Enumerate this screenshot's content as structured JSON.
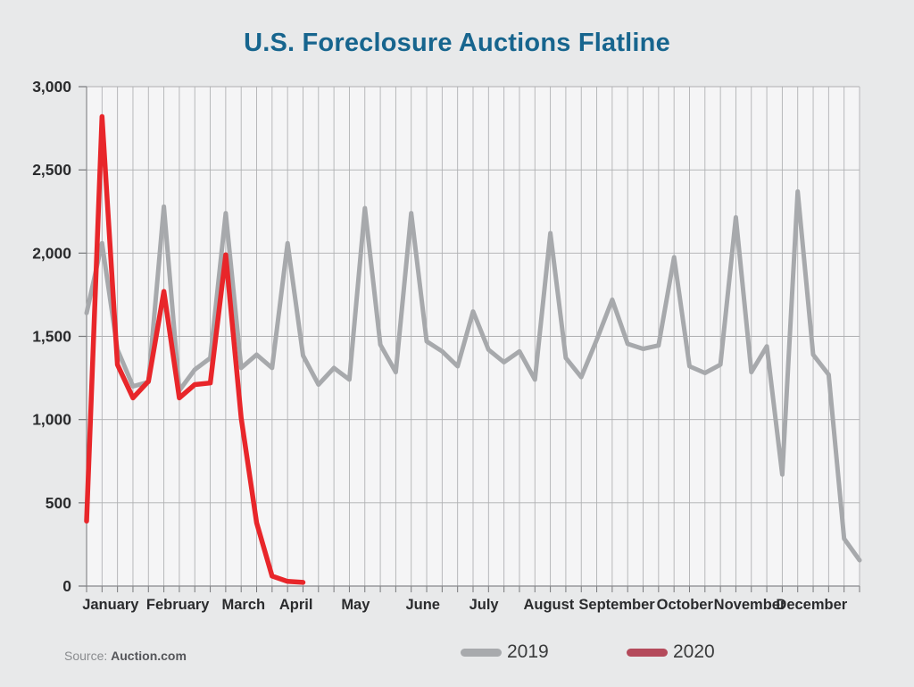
{
  "page": {
    "title": "U.S. Foreclosure Auctions Flatline"
  },
  "chart_data": {
    "type": "line",
    "title": "U.S. Foreclosure Auctions Flatline",
    "title_color": "#17658e",
    "xlabel": "",
    "ylabel": "",
    "ylim": [
      0,
      3000
    ],
    "y_tick_labels": [
      "3,000",
      "2,500",
      "2,000",
      "1,500",
      "1,000",
      "500",
      "0"
    ],
    "y_tick_values": [
      3000,
      2500,
      2000,
      1500,
      1000,
      500,
      0
    ],
    "x_unit": "week",
    "weeks": 51,
    "grid": {
      "vertical_lines": 51,
      "horizontal_step": 500,
      "grid_on": true
    },
    "months": [
      "January",
      "February",
      "March",
      "April",
      "May",
      "June",
      "July",
      "August",
      "September",
      "October",
      "November",
      "December"
    ],
    "month_center_fracs": [
      0.031,
      0.118,
      0.203,
      0.271,
      0.348,
      0.435,
      0.514,
      0.598,
      0.686,
      0.774,
      0.858,
      0.938
    ],
    "series": [
      {
        "name": "2019",
        "color": "#a7a9ac",
        "line_width": 5,
        "values": [
          1640,
          2060,
          1420,
          1200,
          1225,
          2280,
          1175,
          1300,
          1370,
          2240,
          1310,
          1390,
          1310,
          2060,
          1385,
          1210,
          1310,
          1240,
          2270,
          1450,
          1285,
          2240,
          1470,
          1410,
          1320,
          1650,
          1420,
          1345,
          1410,
          1240,
          2120,
          1370,
          1255,
          1480,
          1720,
          1455,
          1425,
          1445,
          1975,
          1320,
          1280,
          1330,
          2215,
          1285,
          1440,
          670,
          2370,
          1390,
          1270,
          285,
          155
        ]
      },
      {
        "name": "2020",
        "color": "#e8262a",
        "line_width": 5.5,
        "values": [
          390,
          2820,
          1330,
          1130,
          1230,
          1770,
          1130,
          1210,
          1220,
          1990,
          1010,
          380,
          60,
          28,
          22
        ]
      }
    ],
    "legend": [
      {
        "label": "2019",
        "swatch_color": "#a8aaad"
      },
      {
        "label": "2020",
        "swatch_color": "#b44a5b"
      }
    ],
    "legend_position": "bottom",
    "source": {
      "label": "Source:",
      "value": "Auction.com"
    }
  }
}
